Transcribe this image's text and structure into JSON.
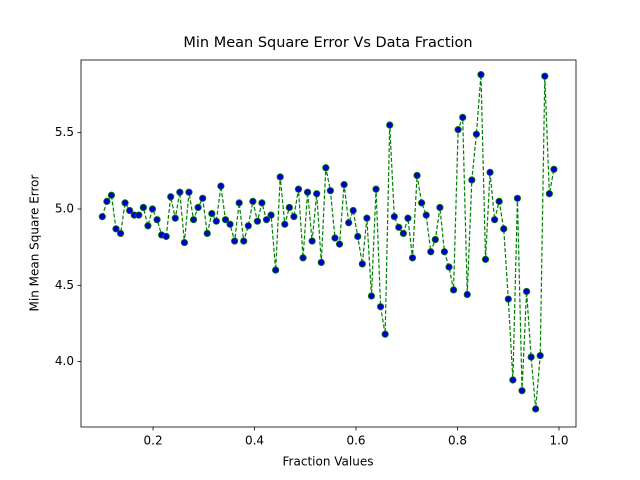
{
  "chart_data": {
    "type": "line",
    "title": "Min Mean Square Error Vs Data Fraction",
    "x_label": "Fraction Values",
    "y_label": "Min Mean Square Error",
    "x": [
      0.1,
      0.109,
      0.118,
      0.127,
      0.136,
      0.1449,
      0.1539,
      0.1629,
      0.1719,
      0.1809,
      0.1899,
      0.1989,
      0.2079,
      0.2169,
      0.2259,
      0.2348,
      0.2438,
      0.2528,
      0.2618,
      0.2708,
      0.2798,
      0.2888,
      0.2978,
      0.3068,
      0.3158,
      0.3247,
      0.3337,
      0.3427,
      0.3517,
      0.3607,
      0.3697,
      0.3787,
      0.3877,
      0.3967,
      0.4057,
      0.4146,
      0.4236,
      0.4326,
      0.4416,
      0.4506,
      0.4596,
      0.4686,
      0.4776,
      0.4866,
      0.4956,
      0.5045,
      0.5135,
      0.5225,
      0.5315,
      0.5405,
      0.5495,
      0.5585,
      0.5675,
      0.5765,
      0.5855,
      0.5944,
      0.6034,
      0.6124,
      0.6214,
      0.6304,
      0.6394,
      0.6484,
      0.6574,
      0.6664,
      0.6754,
      0.6843,
      0.6933,
      0.7023,
      0.7113,
      0.7203,
      0.7293,
      0.7383,
      0.7473,
      0.7563,
      0.7653,
      0.7742,
      0.7832,
      0.7922,
      0.8012,
      0.8102,
      0.8192,
      0.8282,
      0.8372,
      0.8462,
      0.8552,
      0.8641,
      0.8731,
      0.8821,
      0.8911,
      0.9001,
      0.9091,
      0.9181,
      0.9271,
      0.9361,
      0.9451,
      0.954,
      0.963,
      0.972,
      0.981,
      0.99
    ],
    "series": [
      {
        "color": "#008000",
        "marker_color": "#0000cc",
        "values": [
          4.95,
          5.05,
          5.09,
          4.87,
          4.84,
          5.04,
          4.99,
          4.96,
          4.96,
          5.01,
          4.89,
          5.0,
          4.93,
          4.83,
          4.82,
          5.08,
          4.94,
          5.11,
          4.78,
          5.11,
          4.93,
          5.01,
          5.07,
          4.84,
          4.97,
          4.92,
          5.15,
          4.93,
          4.9,
          4.79,
          5.04,
          4.79,
          4.89,
          5.05,
          4.92,
          5.04,
          4.93,
          4.96,
          4.6,
          5.21,
          4.9,
          5.01,
          4.95,
          5.13,
          4.68,
          5.11,
          4.79,
          5.1,
          4.65,
          5.27,
          5.12,
          4.81,
          4.77,
          5.16,
          4.91,
          4.99,
          4.82,
          4.64,
          4.94,
          4.43,
          5.13,
          4.36,
          4.18,
          5.55,
          4.95,
          4.88,
          4.84,
          4.94,
          4.68,
          5.22,
          5.04,
          4.96,
          4.72,
          4.8,
          5.01,
          4.72,
          4.62,
          4.47,
          5.52,
          5.6,
          4.44,
          5.19,
          5.49,
          5.88,
          4.67,
          5.24,
          4.93,
          5.05,
          4.87,
          4.41,
          3.88,
          5.07,
          3.81,
          4.46,
          4.03,
          3.69,
          4.04,
          5.87,
          5.1,
          5.26
        ]
      }
    ],
    "xlim": [
      0.058,
      1.0335
    ],
    "ylim": [
      3.572,
      5.976
    ],
    "xticks": [
      0.2,
      0.4,
      0.6,
      0.8,
      {
        "value": 1,
        "label": "1.0"
      }
    ],
    "yticks": [
      {
        "value": 4,
        "label": "4.0"
      },
      4.5,
      {
        "value": 5,
        "label": "5.0"
      },
      5.5
    ],
    "grid": false
  }
}
